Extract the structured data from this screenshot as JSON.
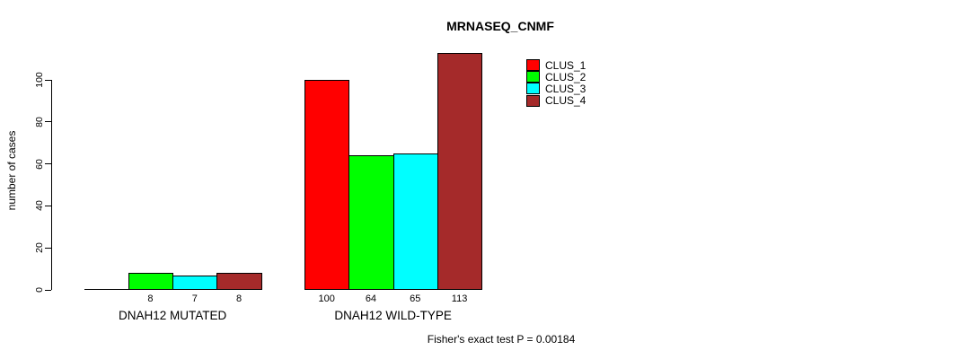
{
  "header": {
    "title": "MRNASEQ_CNMF"
  },
  "footnote": "Fisher's exact test P = 0.00184",
  "colors": {
    "background": "#FFFFFF",
    "axis": "#000000",
    "bar_border": "#000000",
    "text": "#000000"
  },
  "chart_data": {
    "type": "bar",
    "title": "MRNASEQ_CNMF",
    "xlabel": "",
    "ylabel": "number of cases",
    "ylim": [
      0,
      100
    ],
    "yticks": [
      0,
      20,
      40,
      60,
      80,
      100
    ],
    "grid": false,
    "legend_position": "top-right",
    "categories": [
      "DNAH12 MUTATED",
      "DNAH12 WILD-TYPE"
    ],
    "series": [
      {
        "name": "CLUS_1",
        "color": "#FF0000",
        "values": [
          0,
          100
        ]
      },
      {
        "name": "CLUS_2",
        "color": "#00FF00",
        "values": [
          8,
          64
        ]
      },
      {
        "name": "CLUS_3",
        "color": "#00FFFF",
        "values": [
          7,
          65
        ]
      },
      {
        "name": "CLUS_4",
        "color": "#A52A2A",
        "values": [
          8,
          113
        ]
      }
    ],
    "bar_value_labels": [
      [
        "",
        "8",
        "7",
        "8"
      ],
      [
        "100",
        "64",
        "65",
        "113"
      ]
    ],
    "annotation": "Fisher's exact test P = 0.00184"
  }
}
